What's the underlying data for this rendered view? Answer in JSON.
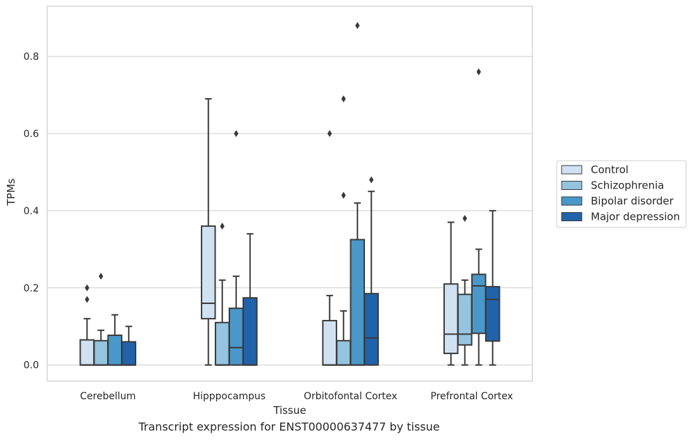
{
  "caption": "Transcript expression for ENST00000637477 by tissue",
  "chart_data": {
    "type": "boxplot",
    "xlabel": "Tissue",
    "ylabel": "TPMs",
    "ylim": [
      -0.042,
      0.93
    ],
    "yticks": [
      0.0,
      0.2,
      0.4,
      0.6,
      0.8
    ],
    "ytick_labels": [
      "0.0",
      "0.2",
      "0.4",
      "0.6",
      "0.8"
    ],
    "grid": "horizontal",
    "legend_position": "right",
    "categories": [
      "Cerebellum",
      "Hipppocampus",
      "Orbitofontal Cortex",
      "Prefrontal Cortex"
    ],
    "series": [
      {
        "name": "Control",
        "color": "#d0e1f2",
        "boxes": [
          {
            "min": 0.0,
            "q1": 0.0,
            "median": 0.0,
            "q3": 0.065,
            "max": 0.12,
            "outliers": [
              0.17,
              0.2
            ]
          },
          {
            "min": 0.0,
            "q1": 0.12,
            "median": 0.16,
            "q3": 0.36,
            "max": 0.69,
            "outliers": []
          },
          {
            "min": 0.0,
            "q1": 0.0,
            "median": 0.0,
            "q3": 0.115,
            "max": 0.18,
            "outliers": [
              0.6
            ]
          },
          {
            "min": 0.0,
            "q1": 0.03,
            "median": 0.08,
            "q3": 0.21,
            "max": 0.37,
            "outliers": []
          }
        ]
      },
      {
        "name": "Schizophrenia",
        "color": "#94c4df",
        "boxes": [
          {
            "min": 0.0,
            "q1": 0.0,
            "median": 0.0,
            "q3": 0.063,
            "max": 0.09,
            "outliers": [
              0.23
            ]
          },
          {
            "min": 0.0,
            "q1": 0.0,
            "median": 0.0,
            "q3": 0.11,
            "max": 0.22,
            "outliers": [
              0.36
            ]
          },
          {
            "min": 0.0,
            "q1": 0.0,
            "median": 0.0,
            "q3": 0.063,
            "max": 0.14,
            "outliers": [
              0.44,
              0.69
            ]
          },
          {
            "min": 0.0,
            "q1": 0.052,
            "median": 0.08,
            "q3": 0.183,
            "max": 0.22,
            "outliers": [
              0.38
            ]
          }
        ]
      },
      {
        "name": "Bipolar disorder",
        "color": "#4a98c9",
        "boxes": [
          {
            "min": 0.0,
            "q1": 0.0,
            "median": 0.0,
            "q3": 0.077,
            "max": 0.13,
            "outliers": []
          },
          {
            "min": 0.0,
            "q1": 0.0,
            "median": 0.045,
            "q3": 0.147,
            "max": 0.23,
            "outliers": [
              0.6
            ]
          },
          {
            "min": 0.0,
            "q1": 0.0,
            "median": 0.0,
            "q3": 0.325,
            "max": 0.42,
            "outliers": [
              0.88
            ]
          },
          {
            "min": 0.0,
            "q1": 0.082,
            "median": 0.205,
            "q3": 0.235,
            "max": 0.3,
            "outliers": [
              0.76
            ]
          }
        ]
      },
      {
        "name": "Major depression",
        "color": "#2163aa",
        "boxes": [
          {
            "min": 0.0,
            "q1": 0.0,
            "median": 0.0,
            "q3": 0.06,
            "max": 0.1,
            "outliers": []
          },
          {
            "min": 0.0,
            "q1": 0.0,
            "median": 0.0,
            "q3": 0.174,
            "max": 0.34,
            "outliers": []
          },
          {
            "min": 0.0,
            "q1": 0.0,
            "median": 0.07,
            "q3": 0.185,
            "max": 0.45,
            "outliers": [
              0.48
            ]
          },
          {
            "min": 0.0,
            "q1": 0.062,
            "median": 0.17,
            "q3": 0.203,
            "max": 0.4,
            "outliers": []
          }
        ]
      }
    ]
  }
}
